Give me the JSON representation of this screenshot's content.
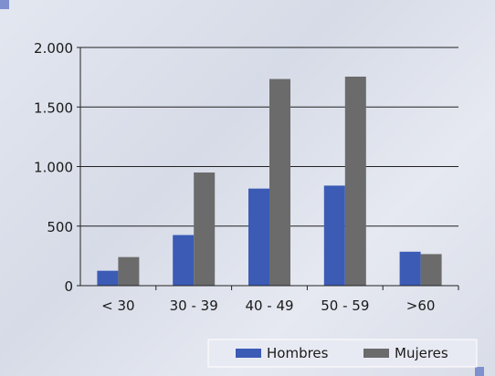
{
  "colors": {
    "hombres": "#3b5bb5",
    "mujeres": "#6b6b6b",
    "corner_accent": "#7f90cf",
    "legend_bg": "#e8eaf3"
  },
  "chart_data": {
    "type": "bar",
    "categories": [
      "< 30",
      "30 - 39",
      "40 - 49",
      "50 - 59",
      ">60"
    ],
    "series": [
      {
        "name": "Hombres",
        "values": [
          125,
          425,
          815,
          840,
          285
        ]
      },
      {
        "name": "Mujeres",
        "values": [
          240,
          950,
          1735,
          1755,
          265
        ]
      }
    ],
    "y_ticks": [
      {
        "value": 0,
        "label": "0"
      },
      {
        "value": 500,
        "label": "500"
      },
      {
        "value": 1000,
        "label": "1.000"
      },
      {
        "value": 1500,
        "label": "1.500"
      },
      {
        "value": 2000,
        "label": "2.000"
      }
    ],
    "ylim": [
      0,
      2000
    ],
    "grid": true,
    "legend_position": "bottom-right"
  }
}
